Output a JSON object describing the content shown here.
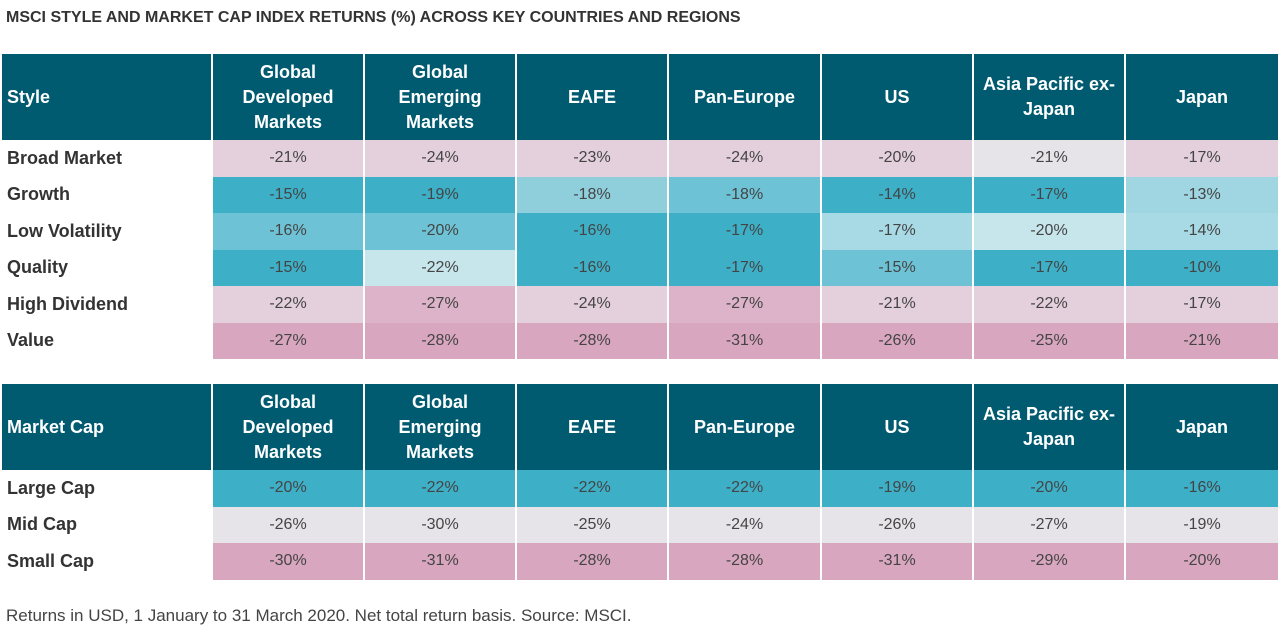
{
  "title": "MSCI STYLE AND MARKET CAP INDEX RETURNS (%) ACROSS KEY COUNTRIES AND REGIONS",
  "footnote": "Returns in USD, 1 January to 31 March 2020. Net total return basis. Source: MSCI.",
  "colors": {
    "header_bg": "#005a70",
    "strong_teal": "#3db0c8",
    "mid_teal": "#6dc3d5",
    "light_teal": "#9fd6e2",
    "pale_teal": "#c6e6ec",
    "neutral": "#e6e4e9",
    "pale_pink": "#e4d0dc",
    "mid_pink": "#dcb3c8",
    "strong_pink": "#d9a6bf"
  },
  "chart_data": [
    {
      "type": "table",
      "row_header": "Style",
      "columns": [
        "Global Developed Markets",
        "Global Emerging Markets",
        "EAFE",
        "Pan-Europe",
        "US",
        "Asia Pacific ex-Japan",
        "Japan"
      ],
      "rows": [
        {
          "label": "Broad Market",
          "values": [
            "-21%",
            "-24%",
            "-23%",
            "-24%",
            "-20%",
            "-21%",
            "-17%"
          ],
          "shades": [
            "#e4d0dc",
            "#e4d0dc",
            "#e4d0dc",
            "#e4d0dc",
            "#e4d0dc",
            "#e6e4e9",
            "#e4d0dc"
          ]
        },
        {
          "label": "Growth",
          "values": [
            "-15%",
            "-19%",
            "-18%",
            "-18%",
            "-14%",
            "-17%",
            "-13%"
          ],
          "shades": [
            "#3db0c8",
            "#3db0c8",
            "#8fcfdc",
            "#6dc3d5",
            "#3db0c8",
            "#3db0c8",
            "#9fd6e2"
          ]
        },
        {
          "label": "Low Volatility",
          "values": [
            "-16%",
            "-20%",
            "-16%",
            "-17%",
            "-17%",
            "-20%",
            "-14%"
          ],
          "shades": [
            "#6dc3d5",
            "#6dc3d5",
            "#3db0c8",
            "#3db0c8",
            "#a8dae5",
            "#c6e6ec",
            "#a8dae5"
          ]
        },
        {
          "label": "Quality",
          "values": [
            "-15%",
            "-22%",
            "-16%",
            "-17%",
            "-15%",
            "-17%",
            "-10%"
          ],
          "shades": [
            "#3db0c8",
            "#c6e6ec",
            "#3db0c8",
            "#3db0c8",
            "#6dc3d5",
            "#3db0c8",
            "#3db0c8"
          ]
        },
        {
          "label": "High Dividend",
          "values": [
            "-22%",
            "-27%",
            "-24%",
            "-27%",
            "-21%",
            "-22%",
            "-17%"
          ],
          "shades": [
            "#e4d0dc",
            "#dcb3c8",
            "#e4d0dc",
            "#dcb3c8",
            "#e4d0dc",
            "#e4d0dc",
            "#e4d0dc"
          ]
        },
        {
          "label": "Value",
          "values": [
            "-27%",
            "-28%",
            "-28%",
            "-31%",
            "-26%",
            "-25%",
            "-21%"
          ],
          "shades": [
            "#d9a6bf",
            "#d9a6bf",
            "#d9a6bf",
            "#d9a6bf",
            "#d9a6bf",
            "#d9a6bf",
            "#d9a6bf"
          ]
        }
      ]
    },
    {
      "type": "table",
      "row_header": "Market Cap",
      "columns": [
        "Global Developed Markets",
        "Global Emerging Markets",
        "EAFE",
        "Pan-Europe",
        "US",
        "Asia Pacific ex-Japan",
        "Japan"
      ],
      "rows": [
        {
          "label": "Large Cap",
          "values": [
            "-20%",
            "-22%",
            "-22%",
            "-22%",
            "-19%",
            "-20%",
            "-16%"
          ],
          "shades": [
            "#3db0c8",
            "#3db0c8",
            "#3db0c8",
            "#3db0c8",
            "#3db0c8",
            "#3db0c8",
            "#3db0c8"
          ]
        },
        {
          "label": "Mid Cap",
          "values": [
            "-26%",
            "-30%",
            "-25%",
            "-24%",
            "-26%",
            "-27%",
            "-19%"
          ],
          "shades": [
            "#e6e4e9",
            "#e6e4e9",
            "#e6e4e9",
            "#e6e4e9",
            "#e6e4e9",
            "#e6e4e9",
            "#e6e4e9"
          ]
        },
        {
          "label": "Small Cap",
          "values": [
            "-30%",
            "-31%",
            "-28%",
            "-28%",
            "-31%",
            "-29%",
            "-20%"
          ],
          "shades": [
            "#d9a6bf",
            "#d9a6bf",
            "#d9a6bf",
            "#d9a6bf",
            "#d9a6bf",
            "#d9a6bf",
            "#d9a6bf"
          ]
        }
      ]
    }
  ]
}
